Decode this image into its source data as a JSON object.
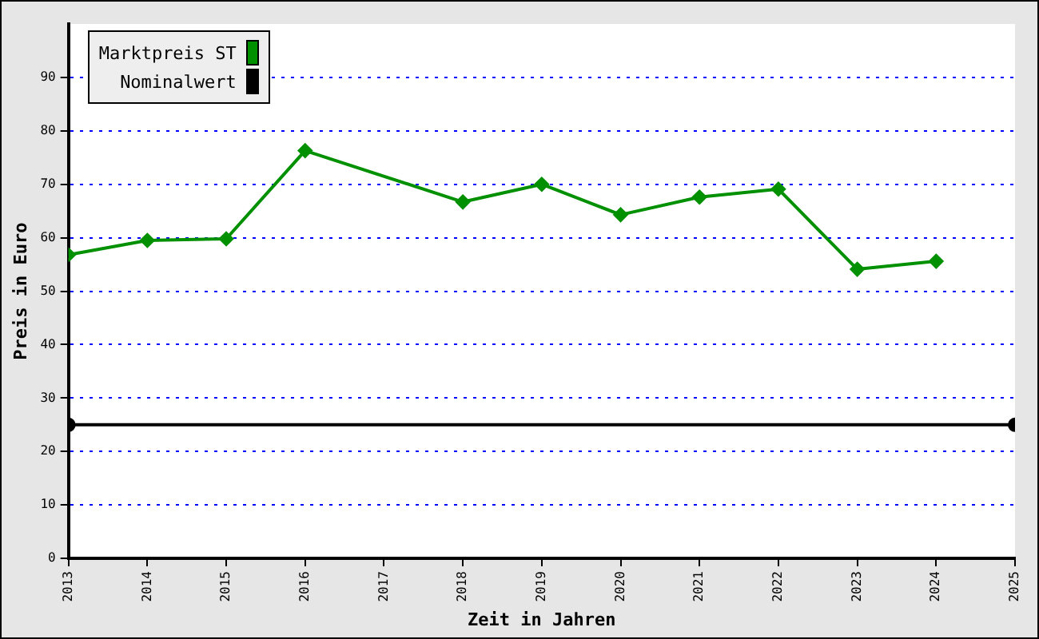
{
  "chart_data": {
    "type": "line",
    "xlabel": "Zeit in Jahren",
    "ylabel": "Preis in Euro",
    "xlim": [
      2013,
      2025
    ],
    "xticks": [
      2013,
      2014,
      2015,
      2016,
      2017,
      2018,
      2019,
      2020,
      2021,
      2022,
      2023,
      2024,
      2025
    ],
    "ylim": [
      0,
      100
    ],
    "yticks": [
      0,
      10,
      20,
      30,
      40,
      50,
      60,
      70,
      80,
      90
    ],
    "grid": "y",
    "legend": "top left",
    "series": [
      {
        "name": "Marktpreis ST",
        "color": "#009000",
        "marker": "diamond",
        "x": [
          2013,
          2014,
          2015,
          2016,
          2018,
          2019,
          2020,
          2021,
          2022,
          2023,
          2024
        ],
        "values": [
          56.8,
          59.5,
          59.8,
          76.3,
          66.7,
          70.0,
          64.3,
          67.6,
          69.1,
          54.1,
          55.6
        ]
      },
      {
        "name": "Nominalwert",
        "color": "#000000",
        "marker": "circle",
        "x": [
          2013,
          2025
        ],
        "values": [
          25,
          25
        ]
      }
    ]
  }
}
